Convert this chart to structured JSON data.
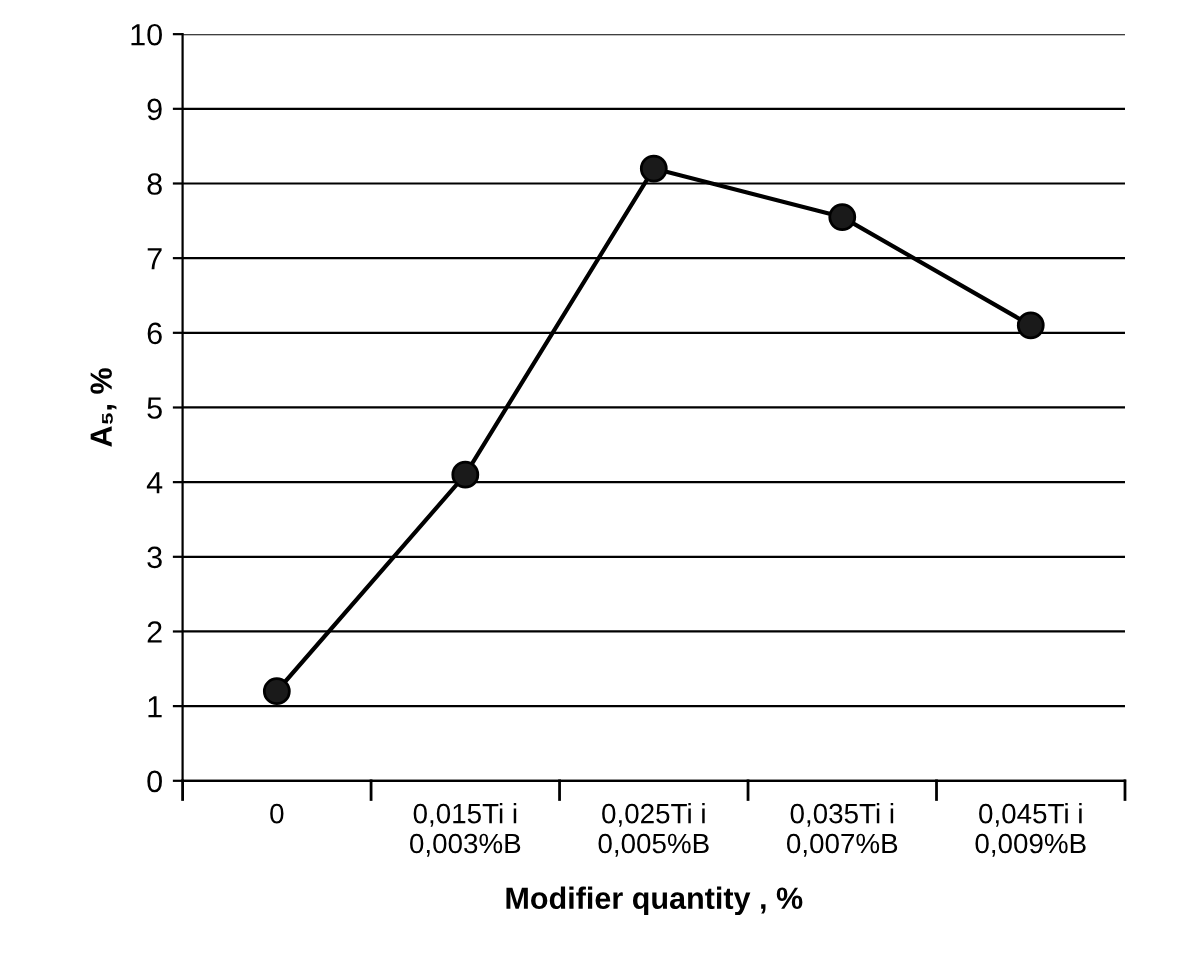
{
  "chart_data": {
    "type": "line",
    "xlabel": "Modifier quantity , %",
    "ylabel": "A₅, %",
    "categories": [
      "0",
      "0,015Ti i\n0,003%B",
      "0,025Ti i\n0,005%B",
      "0,035Ti i\n0,007%B",
      "0,045Ti i\n0,009%B"
    ],
    "series": [
      {
        "color": "#000000",
        "values": [
          1.2,
          4.1,
          8.2,
          7.55,
          6.1
        ]
      }
    ],
    "ylim": [
      0,
      10
    ],
    "yticks": [
      0,
      1,
      2,
      3,
      4,
      5,
      6,
      7,
      8,
      9,
      10
    ],
    "grid": "y",
    "marker": "circle",
    "line_style": "solid",
    "legend": false
  }
}
